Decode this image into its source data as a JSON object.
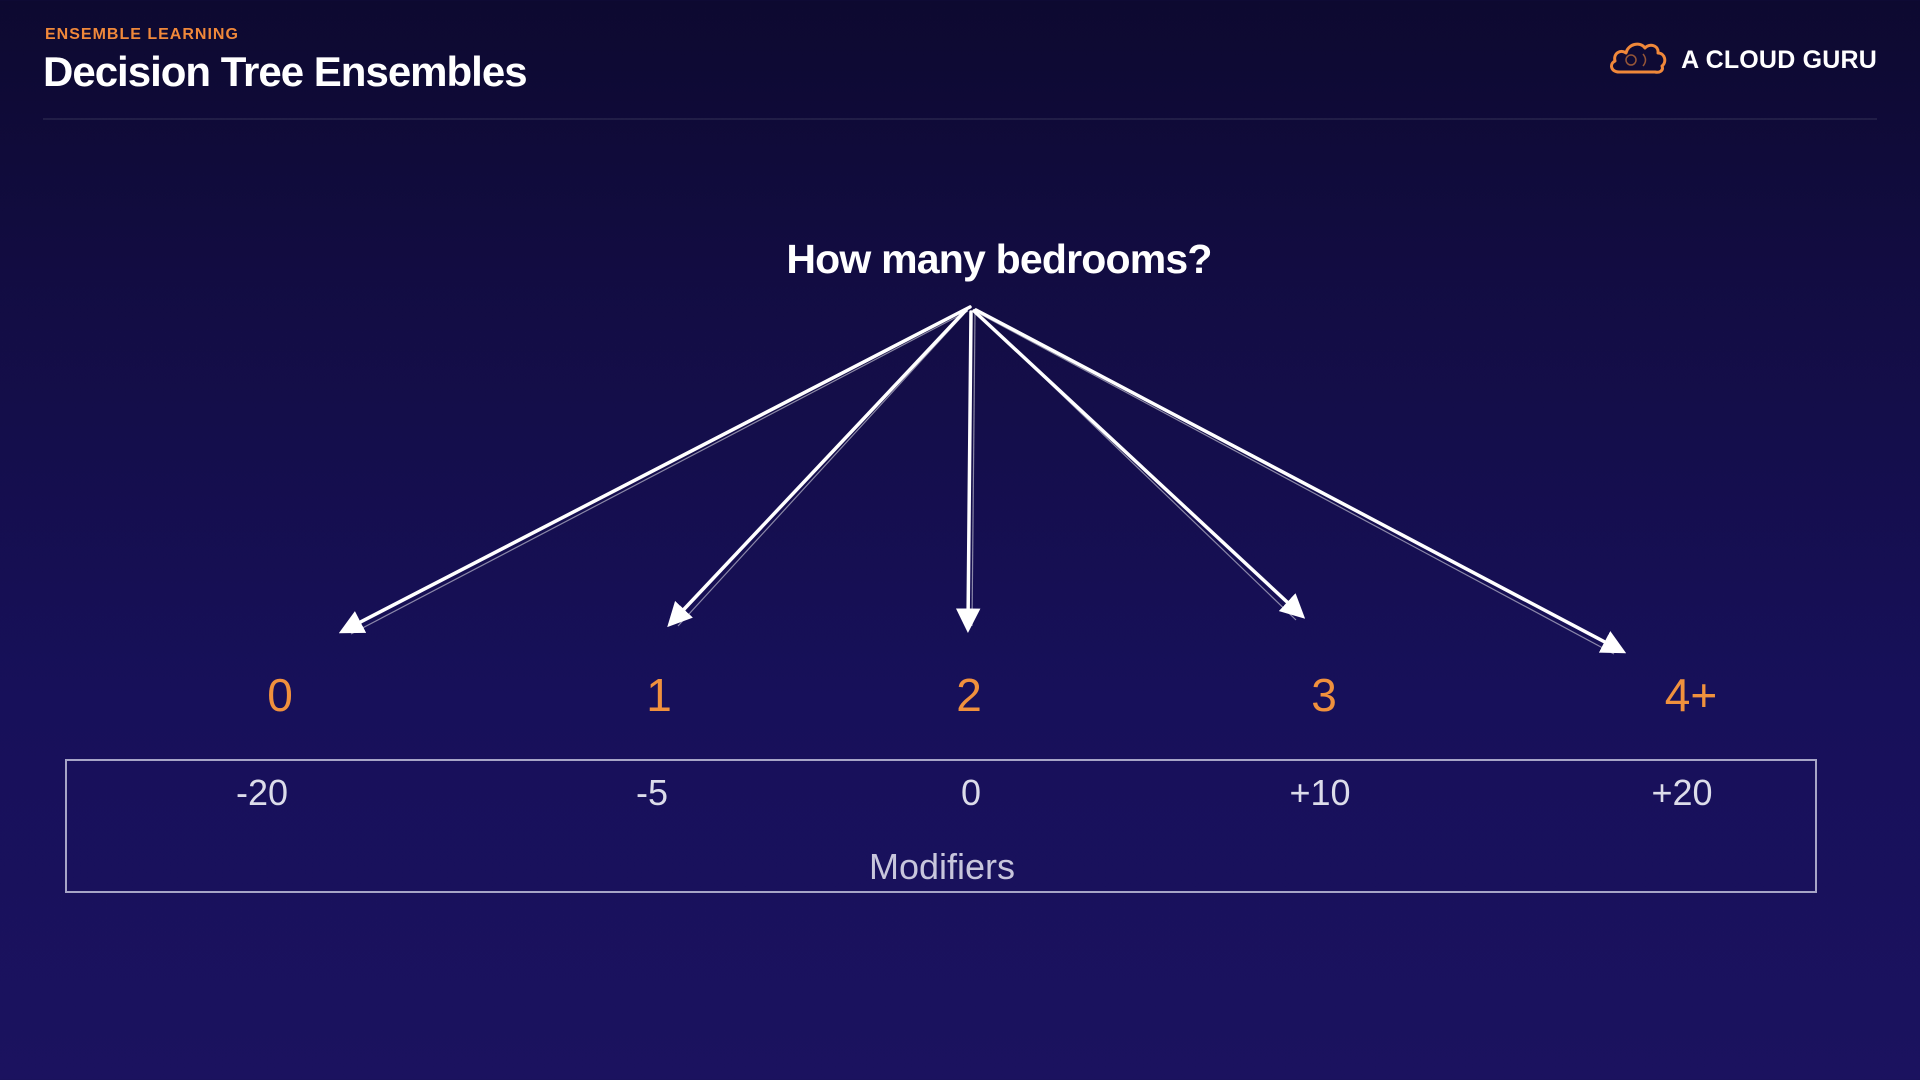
{
  "header": {
    "kicker": "ENSEMBLE LEARNING",
    "title": "Decision Tree Ensembles"
  },
  "brand": {
    "name": "A CLOUD GURU",
    "icon": "cloud-logo-icon",
    "accent_color": "#f0883a"
  },
  "diagram": {
    "question": "How many bedrooms?",
    "options": [
      "0",
      "1",
      "2",
      "3",
      "4+"
    ],
    "modifiers": [
      "-20",
      "-5",
      "0",
      "+10",
      "+20"
    ],
    "modifiers_label": "Modifiers",
    "option_color": "#f0913d",
    "arrow_color": "#ffffff"
  }
}
